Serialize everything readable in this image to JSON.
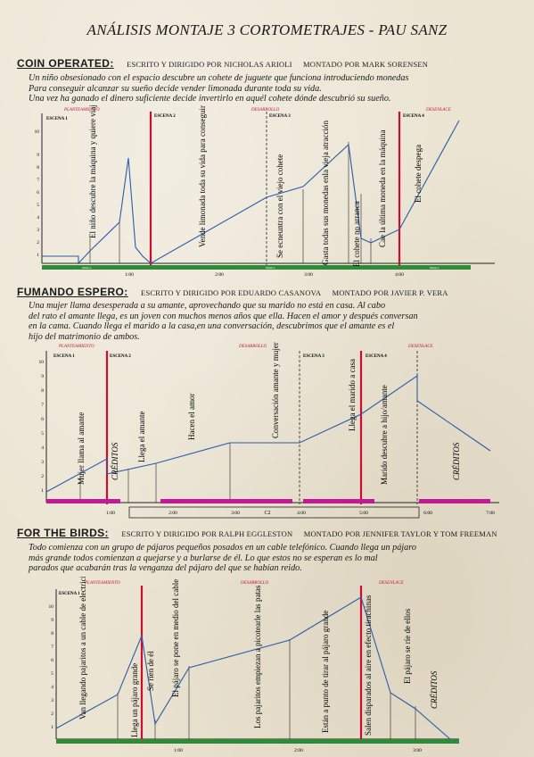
{
  "title": "ANÁLISIS MONTAJE 3 CORTOMETRAJES   -   PAU SANZ",
  "films": [
    {
      "title": "COIN OPERATED:",
      "director": "ESCRITO Y DIRIGIDO POR NICHOLAS ARIOLI",
      "editor": "MONTADO POR MARK SORENSEN",
      "synopsis": [
        "Un niño obsesionado con el espacio descubre un cohete de juguete que funciona introduciendo monedas",
        "Para conseguir alcanzar su sueño decide vender limonada durante toda su vida.",
        "Una vez ha ganado el dinero suficiente decide invertirlo en aquél cohete dónde descubrió su sueño."
      ],
      "acts": [
        "PLANTEAMIENTO",
        "DESARROLLO",
        "DESENLACE"
      ],
      "scenes": [
        "ESCENA 1",
        "ESCENA 2",
        "ESCENA 3",
        "ESCENA 4"
      ],
      "y_ticks": [
        "1",
        "2",
        "3",
        "4",
        "5",
        "6",
        "7",
        "8",
        "9",
        "10"
      ],
      "x_ticks": [
        "1:00",
        "2:00",
        "3:00",
        "4:00"
      ],
      "bar_labels": [
        "Música",
        "Música",
        "Música"
      ],
      "annotations": [
        "El niño descubre la máquina y quiere viajar a la luna",
        "Vende limonada toda su vida para conseguir monedas",
        "Se ecneuntra con el viejo cohete",
        "Gasta todas sus monedas enla vieja atracción",
        "El cohete no arranca",
        "Cae la última moneda en la máquina",
        "El cohete despega"
      ]
    },
    {
      "title": "FUMANDO ESPERO:",
      "director": "ESCRITO Y DIRIGIDO POR EDUARDO CASANOVA",
      "editor": "MONTADO POR JAVIER P. VERA",
      "synopsis": [
        "Una mujer llama desesperada a su amante, aprovechando que su marido no está en casa. Al cabo",
        "del rato el amante llega, es un joven con muchos menos años que ella. Hacen el amor y después conversan",
        "en la cama. Cuando llega el marido a la casa,en una conversación, descubrimos que el amante es el",
        "hijo del matrimonio de ambos."
      ],
      "acts": [
        "PLANTEAMIENTO",
        "DESARROLLO",
        "DESENLACE"
      ],
      "scenes": [
        "ESCENA 1",
        "ESCENA 2",
        "ESCENA 3",
        "ESCENA 4"
      ],
      "y_ticks": [
        "1",
        "2",
        "3",
        "4",
        "5",
        "6",
        "7",
        "8",
        "9",
        "10"
      ],
      "x_ticks": [
        "1:00",
        "2:00",
        "3:00",
        "4:00",
        "5:00",
        "6:00",
        "7:00"
      ],
      "c2_label": "C2",
      "annotations": [
        "Mujer llama al amante",
        "CRÉDITOS",
        "Llega el amante",
        "Hacen el amor",
        "Conversación amante y mujer",
        "Llega el marido a casa",
        "Marido descubre a hijo/amante",
        "CRÉDITOS"
      ]
    },
    {
      "title": "FOR THE BIRDS:",
      "director": "ESCRITO Y DIRIGIDO POR RALPH EGGLESTON",
      "editor": "MONTADO POR JENNIFER TAYLOR Y TOM FREEMAN",
      "synopsis": [
        "Todo comienza con un grupo de pájaros pequeños posados en un cable telefónico. Cuando llega un pájaro",
        "más grande todos comienzan a quejarse y a burlarse de él. Lo que estos no se esperan es lo mal",
        "parados que acabarán tras la venganza del pájaro del que se habían reido."
      ],
      "acts": [
        "PLANTEAMIENTO",
        "DESARROLLO",
        "DESENLACE"
      ],
      "scenes": [
        "ESCENA 1"
      ],
      "y_ticks": [
        "1",
        "2",
        "3",
        "4",
        "5",
        "6",
        "7",
        "8",
        "9",
        "10"
      ],
      "x_ticks": [
        "1:00",
        "2:00",
        "3:00"
      ],
      "annotations": [
        "Van llegando pajaritos a un cable de electricidad",
        "Llega un pájaro grande",
        "Se ríen de él",
        "El pájaro se pone en medio del cable",
        "Los pajaritos empiezan a picotearle las patas",
        "Están a punto de tirar al pájaro grande",
        "Salen disparados al aire en efecto tirachinas",
        "El pájaro se ríe de ellos",
        "CRÉDITOS"
      ]
    }
  ]
}
